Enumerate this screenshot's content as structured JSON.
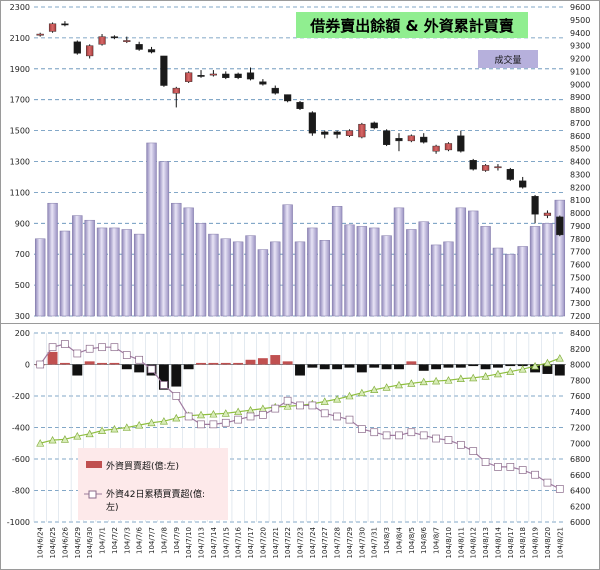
{
  "chart_data": [
    {
      "type": "candlestick+bar",
      "title": "借券賣出餘額 & 外資累計買賣",
      "volume_label": "成交量",
      "left_axis": {
        "ylim": [
          300,
          2300
        ],
        "ticks": [
          300,
          500,
          700,
          900,
          1100,
          1300,
          1500,
          1700,
          1900,
          2100,
          2300
        ]
      },
      "right_axis": {
        "ylim": [
          7200,
          9600
        ],
        "ticks": [
          7200,
          7300,
          7400,
          7500,
          7600,
          7700,
          7800,
          7900,
          8000,
          8100,
          8200,
          8300,
          8400,
          8500,
          8600,
          8700,
          8800,
          8900,
          9000,
          9100,
          9200,
          9300,
          9400,
          9500,
          9600
        ]
      },
      "grid": true,
      "dates": [
        "104/6/24",
        "104/6/25",
        "104/6/26",
        "104/6/29",
        "104/6/30",
        "104/7/1",
        "104/7/2",
        "104/7/3",
        "104/7/6",
        "104/7/7",
        "104/7/8",
        "104/7/9",
        "104/7/10",
        "104/7/13",
        "104/7/14",
        "104/7/15",
        "104/7/16",
        "104/7/17",
        "104/7/20",
        "104/7/21",
        "104/7/22",
        "104/7/23",
        "104/7/24",
        "104/7/27",
        "104/7/28",
        "104/7/29",
        "104/7/30",
        "104/7/31",
        "104/8/3",
        "104/8/4",
        "104/8/5",
        "104/8/6",
        "104/8/7",
        "104/8/10",
        "104/8/11",
        "104/8/12",
        "104/8/13",
        "104/8/14",
        "104/8/17",
        "104/8/18",
        "104/8/19",
        "104/8/20",
        "104/8/21"
      ],
      "volume": [
        800,
        1030,
        850,
        950,
        920,
        870,
        870,
        860,
        830,
        1420,
        1300,
        1030,
        1000,
        900,
        830,
        800,
        780,
        820,
        730,
        780,
        1020,
        780,
        870,
        790,
        1010,
        890,
        880,
        870,
        820,
        1000,
        860,
        910,
        760,
        780,
        1000,
        980,
        880,
        740,
        700,
        750,
        880,
        900,
        1050
      ],
      "candles": [
        {
          "o": 9380,
          "c": 9390,
          "h": 9400,
          "l": 9370
        },
        {
          "o": 9410,
          "c": 9470,
          "h": 9480,
          "l": 9400
        },
        {
          "o": 9470,
          "c": 9460,
          "h": 9490,
          "l": 9450
        },
        {
          "o": 9330,
          "c": 9240,
          "h": 9340,
          "l": 9230
        },
        {
          "o": 9220,
          "c": 9300,
          "h": 9310,
          "l": 9200
        },
        {
          "o": 9310,
          "c": 9370,
          "h": 9390,
          "l": 9300
        },
        {
          "o": 9370,
          "c": 9360,
          "h": 9380,
          "l": 9350
        },
        {
          "o": 9340,
          "c": 9340,
          "h": 9370,
          "l": 9320
        },
        {
          "o": 9310,
          "c": 9270,
          "h": 9330,
          "l": 9260
        },
        {
          "o": 9270,
          "c": 9250,
          "h": 9290,
          "l": 9240
        },
        {
          "o": 9220,
          "c": 8990,
          "h": 9220,
          "l": 8980
        },
        {
          "o": 8930,
          "c": 8970,
          "h": 8980,
          "l": 8820
        },
        {
          "o": 9020,
          "c": 9090,
          "h": 9100,
          "l": 9010
        },
        {
          "o": 9070,
          "c": 9060,
          "h": 9110,
          "l": 9050
        },
        {
          "o": 9080,
          "c": 9080,
          "h": 9110,
          "l": 9060
        },
        {
          "o": 9080,
          "c": 9050,
          "h": 9100,
          "l": 9040
        },
        {
          "o": 9080,
          "c": 9050,
          "h": 9090,
          "l": 9040
        },
        {
          "o": 9090,
          "c": 9040,
          "h": 9130,
          "l": 9030
        },
        {
          "o": 9020,
          "c": 9000,
          "h": 9040,
          "l": 8990
        },
        {
          "o": 8970,
          "c": 8930,
          "h": 8990,
          "l": 8920
        },
        {
          "o": 8920,
          "c": 8870,
          "h": 8920,
          "l": 8860
        },
        {
          "o": 8860,
          "c": 8810,
          "h": 8870,
          "l": 8800
        },
        {
          "o": 8780,
          "c": 8620,
          "h": 8790,
          "l": 8600
        },
        {
          "o": 8630,
          "c": 8610,
          "h": 8640,
          "l": 8580
        },
        {
          "o": 8630,
          "c": 8610,
          "h": 8640,
          "l": 8580
        },
        {
          "o": 8600,
          "c": 8640,
          "h": 8650,
          "l": 8590
        },
        {
          "o": 8590,
          "c": 8690,
          "h": 8700,
          "l": 8580
        },
        {
          "o": 8700,
          "c": 8660,
          "h": 8710,
          "l": 8650
        },
        {
          "o": 8640,
          "c": 8530,
          "h": 8650,
          "l": 8520
        },
        {
          "o": 8580,
          "c": 8560,
          "h": 8620,
          "l": 8480
        },
        {
          "o": 8560,
          "c": 8600,
          "h": 8610,
          "l": 8550
        },
        {
          "o": 8590,
          "c": 8550,
          "h": 8620,
          "l": 8540
        },
        {
          "o": 8480,
          "c": 8520,
          "h": 8530,
          "l": 8460
        },
        {
          "o": 8490,
          "c": 8540,
          "h": 8550,
          "l": 8480
        },
        {
          "o": 8600,
          "c": 8480,
          "h": 8640,
          "l": 8470
        },
        {
          "o": 8410,
          "c": 8340,
          "h": 8420,
          "l": 8330
        },
        {
          "o": 8330,
          "c": 8370,
          "h": 8380,
          "l": 8320
        },
        {
          "o": 8360,
          "c": 8360,
          "h": 8380,
          "l": 8330
        },
        {
          "o": 8340,
          "c": 8260,
          "h": 8350,
          "l": 8250
        },
        {
          "o": 8250,
          "c": 8200,
          "h": 8280,
          "l": 8190
        },
        {
          "o": 8130,
          "c": 7990,
          "h": 8140,
          "l": 7920
        },
        {
          "o": 7980,
          "c": 8000,
          "h": 8020,
          "l": 7960
        },
        {
          "o": 7970,
          "c": 7830,
          "h": 7980,
          "l": 7820
        }
      ]
    },
    {
      "type": "bar+line",
      "left_axis": {
        "ylim": [
          -1000,
          200
        ],
        "ticks": [
          -1000,
          -800,
          -600,
          -400,
          -200,
          0,
          200
        ]
      },
      "right_axis": {
        "ylim": [
          6000,
          8400
        ],
        "ticks": [
          6000,
          6200,
          6400,
          6600,
          6800,
          7000,
          7200,
          7400,
          7600,
          7800,
          8000,
          8200,
          8400
        ]
      },
      "grid": true,
      "legend": {
        "placement": "bottom-left",
        "entries": [
          "外資買賣超(億:左)",
          "外資42日累積買賣超(億:",
          "左)"
        ]
      },
      "net_buy": [
        0,
        80,
        10,
        -70,
        20,
        10,
        10,
        -30,
        -50,
        -70,
        -160,
        -140,
        -30,
        10,
        10,
        10,
        10,
        30,
        40,
        60,
        20,
        -70,
        -20,
        -30,
        -30,
        -20,
        -50,
        -20,
        -30,
        -30,
        20,
        -40,
        -30,
        -20,
        -20,
        -10,
        -30,
        -20,
        -10,
        -10,
        -50,
        -60,
        -70
      ],
      "cum_42d": [
        0,
        110,
        130,
        70,
        100,
        110,
        110,
        60,
        30,
        -30,
        -130,
        -200,
        -330,
        -380,
        -380,
        -370,
        -350,
        -330,
        -320,
        -280,
        -230,
        -260,
        -260,
        -310,
        -330,
        -350,
        -410,
        -430,
        -450,
        -450,
        -430,
        -450,
        -470,
        -480,
        -510,
        -550,
        -620,
        -650,
        -650,
        -670,
        -700,
        -750,
        -790
      ],
      "series_right": [
        7000,
        7040,
        7050,
        7090,
        7120,
        7160,
        7180,
        7200,
        7230,
        7260,
        7280,
        7320,
        7350,
        7360,
        7370,
        7380,
        7400,
        7420,
        7440,
        7460,
        7470,
        7480,
        7500,
        7530,
        7560,
        7600,
        7640,
        7680,
        7710,
        7740,
        7760,
        7780,
        7790,
        7800,
        7820,
        7830,
        7850,
        7880,
        7910,
        7940,
        7980,
        8020,
        8080
      ]
    }
  ]
}
